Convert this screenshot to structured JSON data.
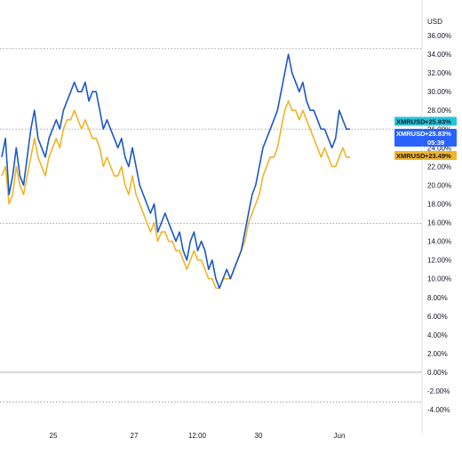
{
  "chart_data": {
    "type": "line",
    "currency_label": "USD",
    "ylim": [
      -5,
      37
    ],
    "y_ticks": [
      "36.00%",
      "34.00%",
      "32.00%",
      "30.00%",
      "28.00%",
      "26.00%",
      "24.00%",
      "22.00%",
      "20.00%",
      "18.00%",
      "16.00%",
      "14.00%",
      "12.00%",
      "10.00%",
      "8.00%",
      "6.00%",
      "4.00%",
      "2.00%",
      "0.00%",
      "-2.00%",
      "-4.00%"
    ],
    "y_tick_values": [
      36,
      34,
      32,
      30,
      28,
      26,
      24,
      22,
      20,
      18,
      16,
      14,
      12,
      10,
      8,
      6,
      4,
      2,
      0,
      -2,
      -4
    ],
    "x_ticks": [
      "25",
      "27",
      "12:00",
      "30",
      "Jun"
    ],
    "x_tick_index": [
      60,
      151,
      222,
      291,
      382
    ],
    "dotted_lines": [
      34.6,
      26.0,
      15.9,
      -3.2
    ],
    "zero_line": 0,
    "series": [
      {
        "name": "XMRUSD",
        "color": "#1c58c8",
        "values": [
          23,
          25,
          19,
          21,
          24,
          21,
          20,
          23,
          26,
          28,
          25,
          24,
          23,
          25,
          26,
          27,
          26,
          28,
          29,
          30,
          31,
          30,
          30,
          31,
          29,
          30,
          30,
          28,
          26,
          27,
          26,
          25,
          24,
          25,
          23,
          22,
          24,
          22,
          20,
          19,
          18,
          17,
          18,
          15,
          16,
          17,
          16,
          15,
          14,
          15,
          13,
          12,
          14,
          15,
          13,
          14,
          13,
          11,
          12,
          10,
          9,
          10,
          11,
          10,
          11,
          12,
          13,
          15,
          17,
          19,
          20,
          22,
          24,
          25,
          26,
          27,
          28,
          30,
          32,
          34,
          32,
          31,
          30,
          31,
          29,
          28,
          28,
          27,
          26,
          26,
          25,
          24,
          25,
          28,
          27,
          26,
          26
        ]
      },
      {
        "name": "XMRUSD",
        "color": "#f0b429",
        "values": [
          21,
          22,
          18,
          19,
          22,
          20,
          19,
          21,
          23,
          25,
          23,
          22,
          21,
          23,
          24,
          25,
          24,
          26,
          27,
          27,
          28,
          27,
          26,
          27,
          26,
          25,
          25,
          24,
          22,
          23,
          22,
          21,
          21,
          22,
          20,
          19,
          21,
          19,
          18,
          17,
          16,
          15,
          16,
          14,
          15,
          15,
          14,
          14,
          13,
          13,
          12,
          11,
          12,
          13,
          12,
          12,
          11,
          10,
          10,
          9,
          9,
          10,
          10,
          10,
          11,
          12,
          13,
          14,
          16,
          17,
          18,
          19,
          21,
          22,
          23,
          23,
          24,
          26,
          28,
          29,
          28,
          28,
          27,
          28,
          27,
          26,
          25,
          24,
          23,
          24,
          23,
          22,
          22,
          23,
          24,
          23,
          23
        ]
      }
    ]
  },
  "price_tags": [
    {
      "symbol": "XMRUSD",
      "value": "+25.93%",
      "bg": "#26c6da",
      "text_color": "#131722"
    },
    {
      "symbol": "XMRUSD",
      "value": "+25.83%",
      "bg": "#2962ff",
      "text_color": "#ffffff",
      "timer": "05:39"
    },
    {
      "symbol": "XMRUSD",
      "value": "+23.49%",
      "bg": "#f0b429",
      "text_color": "#131722"
    }
  ],
  "colors": {
    "grid_dotted": "#8a8fa0",
    "axis_border": "#e0e3eb"
  }
}
